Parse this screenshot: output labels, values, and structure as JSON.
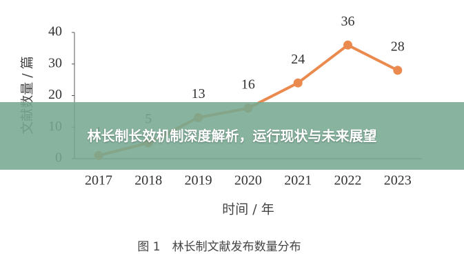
{
  "chart_data": {
    "type": "line",
    "categories": [
      "2017",
      "2018",
      "2019",
      "2020",
      "2021",
      "2022",
      "2023"
    ],
    "values": [
      1,
      5,
      13,
      16,
      24,
      36,
      28
    ],
    "color": "#ea8a4f",
    "ylim": [
      0,
      40
    ],
    "yticks": [
      0,
      10,
      20,
      30,
      40
    ],
    "ylabel": "文献数量 / 篇",
    "xlabel": "时间 / 年",
    "caption": "图 1　林长制文献发布数量分布"
  },
  "banner": {
    "title": "林长制长效机制深度解析，运行现状与未来展望"
  }
}
